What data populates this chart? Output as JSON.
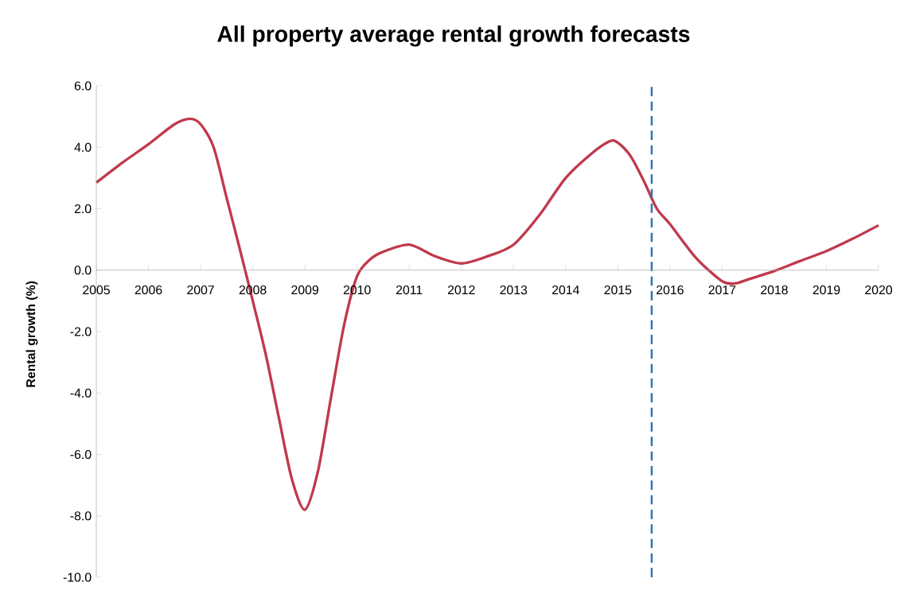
{
  "chart_data": {
    "type": "line",
    "title": "All property average rental growth forecasts",
    "ylabel": "Rental growth (%)",
    "x": [
      2005.0,
      2005.5,
      2006.0,
      2006.5,
      2006.8,
      2007.0,
      2007.25,
      2007.5,
      2007.75,
      2008.0,
      2008.25,
      2008.5,
      2008.75,
      2009.0,
      2009.25,
      2009.5,
      2009.75,
      2010.0,
      2010.25,
      2010.5,
      2011.0,
      2011.5,
      2012.0,
      2012.5,
      2013.0,
      2013.5,
      2014.0,
      2014.5,
      2014.85,
      2015.0,
      2015.25,
      2015.5,
      2015.75,
      2016.0,
      2016.5,
      2017.0,
      2017.25,
      2017.5,
      2018.0,
      2018.5,
      2019.0,
      2019.5,
      2020.0
    ],
    "series": [
      {
        "color": "#c0394b",
        "values": [
          2.85,
          3.5,
          4.1,
          4.75,
          4.93,
          4.75,
          4.0,
          2.35,
          0.7,
          -1.0,
          -2.75,
          -4.8,
          -6.8,
          -7.8,
          -6.55,
          -4.15,
          -1.8,
          -0.2,
          0.35,
          0.6,
          0.83,
          0.45,
          0.22,
          0.45,
          0.83,
          1.8,
          3.0,
          3.8,
          4.2,
          4.15,
          3.7,
          2.9,
          2.0,
          1.5,
          0.4,
          -0.36,
          -0.43,
          -0.3,
          -0.03,
          0.3,
          0.62,
          1.02,
          1.46
        ]
      }
    ],
    "xlim": [
      2005,
      2020
    ],
    "xticks": [
      2005,
      2006,
      2007,
      2008,
      2009,
      2010,
      2011,
      2012,
      2013,
      2014,
      2015,
      2016,
      2017,
      2018,
      2019,
      2020
    ],
    "ylim": [
      -10,
      6
    ],
    "yticks": [
      {
        "value": -10,
        "label": "-10.0"
      },
      {
        "value": -8,
        "label": "-8.0"
      },
      {
        "value": -6,
        "label": "-6.0"
      },
      {
        "value": -4,
        "label": "-4.0"
      },
      {
        "value": -2,
        "label": "-2.0"
      },
      {
        "value": 0,
        "label": "0.0"
      },
      {
        "value": 2,
        "label": "2.0"
      },
      {
        "value": 4,
        "label": "4.0"
      },
      {
        "value": 6,
        "label": "6.0"
      }
    ],
    "ref_lines": [
      {
        "axis": "x",
        "value": 2015.65,
        "color": "#2e75b6",
        "line_style": "dashed"
      }
    ],
    "grid": false,
    "marker": "none",
    "line_style": "solid"
  }
}
